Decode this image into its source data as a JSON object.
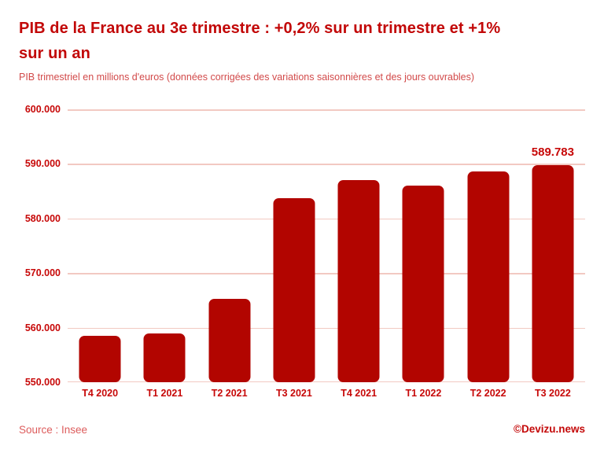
{
  "header": {
    "title_lines": [
      "PIB de la France au 3e trimestre : +0,2% sur un trimestre et +1%",
      "sur un an"
    ],
    "subtitle": "PIB trimestriel en millions d'euros (données corrigées des variations saisonnières et des jours ouvrables)"
  },
  "chart_data": {
    "type": "bar",
    "title": "PIB de la France au 3e trimestre : +0,2% sur un trimestre et +1% sur un an",
    "subtitle": "PIB trimestriel en millions d'euros (données corrigées des variations saisonnières et des jours ouvrables)",
    "categories": [
      "T4 2020",
      "T1 2021",
      "T2 2021",
      "T3 2021",
      "T4 2021",
      "T1 2022",
      "T2 2022",
      "T3 2022"
    ],
    "values": [
      558500,
      559000,
      565300,
      583700,
      587000,
      586000,
      588600,
      589783
    ],
    "last_value_label": "589.783",
    "xlabel": "",
    "ylabel": "",
    "ylim": [
      550000,
      600000
    ],
    "grid": true,
    "legend": "none",
    "yticks": [
      {
        "label": "600.000",
        "value": 600000
      },
      {
        "label": "590.000",
        "value": 590000
      },
      {
        "label": "580.000",
        "value": 580000
      },
      {
        "label": "570.000",
        "value": 570000
      },
      {
        "label": "560.000",
        "value": 560000
      },
      {
        "label": "550.000",
        "value": 550000
      }
    ]
  },
  "footer": {
    "source": "Source : Insee",
    "brand": "©Devizu.news"
  },
  "colors": {
    "background": "#ffffff",
    "bar": "#b20500",
    "title": "#c20707",
    "subtitle": "#d24a4a",
    "axis_label": "#c70808",
    "gridline": "#f2c9c2",
    "source": "#dd5c5c",
    "brand": "#c40909"
  }
}
